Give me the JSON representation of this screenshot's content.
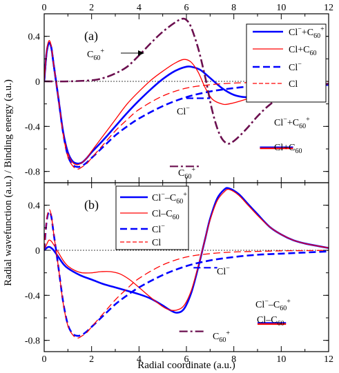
{
  "chart_data": [
    {
      "panel": "(a)",
      "type": "line",
      "xlabel": "Radial coordinate (a.u.)",
      "ylabel": "Radial wavefunction (a.u.) / Binding energy (a.u.)",
      "xlim": [
        0,
        12
      ],
      "ylim": [
        -0.9,
        0.6
      ],
      "xticks": [
        0,
        2,
        4,
        6,
        8,
        10,
        12
      ],
      "yticks": [
        -0.8,
        -0.4,
        0,
        0.4
      ],
      "ytick_labels": [
        "-0.8",
        "-0.4",
        "0",
        "0.4"
      ],
      "legend_position": "top-right",
      "series": [
        {
          "name": "Cl⁻+C60+",
          "color": "#0000ff",
          "dash": "solid",
          "width": 2.6,
          "x": [
            0,
            0.1,
            0.2,
            0.3,
            0.4,
            0.6,
            0.8,
            1.0,
            1.2,
            1.4,
            1.6,
            1.8,
            2.0,
            2.5,
            3.0,
            3.5,
            4.0,
            4.5,
            5.0,
            5.5,
            6.0,
            6.3,
            6.6,
            7.0,
            7.5,
            8.0,
            8.5,
            9.0,
            10.0,
            11.0,
            12.0
          ],
          "y": [
            0,
            0.25,
            0.34,
            0.3,
            0.15,
            -0.15,
            -0.45,
            -0.63,
            -0.71,
            -0.73,
            -0.72,
            -0.68,
            -0.63,
            -0.52,
            -0.4,
            -0.28,
            -0.17,
            -0.07,
            0.02,
            0.09,
            0.13,
            0.125,
            0.1,
            0.03,
            -0.06,
            -0.12,
            -0.14,
            -0.13,
            -0.09,
            -0.05,
            -0.03
          ]
        },
        {
          "name": "Cl+C60",
          "color": "#ff0000",
          "dash": "solid",
          "width": 1.3,
          "x": [
            0,
            0.1,
            0.2,
            0.3,
            0.4,
            0.6,
            0.8,
            1.0,
            1.2,
            1.4,
            1.6,
            1.8,
            2.0,
            2.5,
            3.0,
            3.5,
            4.0,
            4.5,
            5.0,
            5.5,
            5.9,
            6.2,
            6.5,
            6.8,
            7.1,
            7.5,
            7.8,
            8.5,
            9.0,
            10.0,
            11.0,
            12.0
          ],
          "y": [
            0,
            0.26,
            0.36,
            0.31,
            0.15,
            -0.15,
            -0.46,
            -0.64,
            -0.72,
            -0.74,
            -0.72,
            -0.68,
            -0.62,
            -0.48,
            -0.34,
            -0.2,
            -0.09,
            0.01,
            0.09,
            0.16,
            0.195,
            0.17,
            0.08,
            -0.06,
            -0.16,
            -0.2,
            -0.2,
            -0.16,
            -0.12,
            -0.07,
            -0.04,
            -0.02
          ]
        },
        {
          "name": "Cl⁻",
          "color": "#0000ff",
          "dash": "dashed",
          "width": 2.6,
          "x": [
            0,
            0.1,
            0.2,
            0.3,
            0.4,
            0.6,
            0.8,
            1.0,
            1.2,
            1.4,
            1.6,
            1.8,
            2.0,
            2.5,
            3.0,
            3.5,
            4.0,
            5.0,
            6.0,
            7.0,
            8.0,
            9.0,
            10.0,
            11.0,
            12.0
          ],
          "y": [
            0,
            0.25,
            0.34,
            0.3,
            0.15,
            -0.15,
            -0.46,
            -0.66,
            -0.74,
            -0.76,
            -0.75,
            -0.72,
            -0.68,
            -0.58,
            -0.48,
            -0.4,
            -0.33,
            -0.22,
            -0.14,
            -0.09,
            -0.06,
            -0.04,
            -0.03,
            -0.02,
            -0.01
          ]
        },
        {
          "name": "Cl",
          "color": "#ff0000",
          "dash": "dashed",
          "width": 1.3,
          "x": [
            0,
            0.1,
            0.2,
            0.3,
            0.4,
            0.6,
            0.8,
            1.0,
            1.2,
            1.4,
            1.6,
            1.8,
            2.0,
            2.5,
            3.0,
            3.5,
            4.0,
            5.0,
            6.0,
            7.0,
            8.0,
            9.0,
            10.0,
            11.0,
            12.0
          ],
          "y": [
            0,
            0.26,
            0.36,
            0.31,
            0.15,
            -0.15,
            -0.47,
            -0.67,
            -0.75,
            -0.78,
            -0.76,
            -0.73,
            -0.68,
            -0.56,
            -0.44,
            -0.34,
            -0.25,
            -0.13,
            -0.06,
            -0.03,
            -0.015,
            -0.01,
            -0.005,
            -0.003,
            -0.001
          ]
        },
        {
          "name": "C60+",
          "color": "#6b0f4f",
          "dash": "dashdot",
          "width": 2.6,
          "x": [
            0,
            1.0,
            2.0,
            2.5,
            3.0,
            3.5,
            4.0,
            4.5,
            5.0,
            5.5,
            5.8,
            6.0,
            6.2,
            6.5,
            6.8,
            7.1,
            7.4,
            7.7,
            8.0,
            8.5,
            9.0,
            9.5,
            10.0,
            11.0,
            12.0
          ],
          "y": [
            0,
            0.0,
            0.01,
            0.03,
            0.07,
            0.13,
            0.23,
            0.34,
            0.44,
            0.52,
            0.555,
            0.545,
            0.48,
            0.29,
            0.03,
            -0.27,
            -0.47,
            -0.55,
            -0.53,
            -0.43,
            -0.31,
            -0.21,
            -0.14,
            -0.06,
            -0.02
          ]
        }
      ],
      "energy_levels": [
        {
          "label": "Cl⁻",
          "y": -0.15,
          "x": [
            6.0,
            7.0
          ],
          "color": "#0000ff",
          "dash": "dashed"
        },
        {
          "label": "Cl⁻+C60+",
          "y": -0.585,
          "x": [
            9.1,
            10.5
          ],
          "color": "#0000ff",
          "dash": "solid"
        },
        {
          "label": "Cl+C60",
          "y": -0.595,
          "x": [
            9.1,
            10.5
          ],
          "color": "#ff0000",
          "dash": "solid"
        },
        {
          "label": "C60+",
          "y": -0.755,
          "x": [
            5.3,
            6.6
          ],
          "color": "#6b0f4f",
          "dash": "dashdot"
        }
      ],
      "annotations": [
        {
          "text": "C60+",
          "arrow_to": [
            4.2,
            0.31
          ]
        }
      ]
    },
    {
      "panel": "(b)",
      "type": "line",
      "xlabel": "Radial coordinate (a.u.)",
      "xlim": [
        0,
        12
      ],
      "ylim": [
        -0.9,
        0.6
      ],
      "xticks": [
        0,
        2,
        4,
        6,
        8,
        10,
        12
      ],
      "yticks": [
        -0.8,
        -0.4,
        0,
        0.4
      ],
      "ytick_labels": [
        "-0.8",
        "-0.4",
        "0",
        "0.4"
      ],
      "legend_position": "top-left",
      "series": [
        {
          "name": "Cl⁻–C60+",
          "color": "#0000ff",
          "dash": "solid",
          "width": 2.6,
          "x": [
            0,
            0.1,
            0.2,
            0.3,
            0.4,
            0.6,
            0.8,
            1.0,
            1.5,
            2.0,
            2.5,
            3.0,
            3.5,
            4.0,
            4.5,
            5.0,
            5.3,
            5.6,
            5.9,
            6.2,
            6.5,
            6.8,
            7.0,
            7.3,
            7.6,
            7.8,
            8.2,
            8.6,
            9.0,
            9.5,
            10.0,
            10.5,
            11.0,
            11.5,
            12.0
          ],
          "y": [
            0,
            0.02,
            0.03,
            0.02,
            0.0,
            -0.06,
            -0.12,
            -0.16,
            -0.22,
            -0.26,
            -0.3,
            -0.33,
            -0.36,
            -0.39,
            -0.43,
            -0.49,
            -0.53,
            -0.555,
            -0.52,
            -0.38,
            -0.15,
            0.11,
            0.28,
            0.46,
            0.54,
            0.55,
            0.5,
            0.41,
            0.32,
            0.21,
            0.14,
            0.09,
            0.06,
            0.04,
            0.02
          ]
        },
        {
          "name": "Cl–C60",
          "color": "#ff0000",
          "dash": "solid",
          "width": 1.3,
          "x": [
            0,
            0.1,
            0.2,
            0.3,
            0.4,
            0.6,
            0.8,
            1.0,
            1.3,
            1.6,
            2.0,
            2.4,
            2.8,
            3.2,
            3.6,
            4.0,
            4.5,
            5.0,
            5.3,
            5.6,
            5.9,
            6.2,
            6.5,
            6.8,
            7.0,
            7.3,
            7.6,
            7.8,
            8.2,
            8.6,
            9.0,
            9.5,
            10.0,
            10.5,
            11.0,
            11.5,
            12.0
          ],
          "y": [
            0,
            0.05,
            0.09,
            0.08,
            0.05,
            -0.02,
            -0.09,
            -0.14,
            -0.18,
            -0.2,
            -0.2,
            -0.19,
            -0.19,
            -0.21,
            -0.26,
            -0.33,
            -0.42,
            -0.5,
            -0.53,
            -0.53,
            -0.49,
            -0.36,
            -0.14,
            0.11,
            0.27,
            0.44,
            0.52,
            0.54,
            0.49,
            0.4,
            0.31,
            0.21,
            0.14,
            0.09,
            0.06,
            0.04,
            0.02
          ]
        },
        {
          "name": "Cl⁻",
          "color": "#0000ff",
          "dash": "dashed",
          "width": 2.6,
          "x": [
            0,
            0.1,
            0.2,
            0.3,
            0.4,
            0.6,
            0.8,
            1.0,
            1.2,
            1.4,
            1.6,
            1.8,
            2.0,
            2.5,
            3.0,
            3.5,
            4.0,
            5.0,
            6.0,
            7.0,
            8.0,
            9.0,
            10.0,
            11.0,
            12.0
          ],
          "y": [
            0,
            0.25,
            0.34,
            0.3,
            0.15,
            -0.15,
            -0.46,
            -0.66,
            -0.74,
            -0.76,
            -0.75,
            -0.72,
            -0.68,
            -0.58,
            -0.48,
            -0.4,
            -0.33,
            -0.22,
            -0.14,
            -0.09,
            -0.06,
            -0.04,
            -0.03,
            -0.02,
            -0.01
          ]
        },
        {
          "name": "Cl",
          "color": "#ff0000",
          "dash": "dashed",
          "width": 1.3,
          "x": [
            0,
            0.1,
            0.2,
            0.3,
            0.4,
            0.6,
            0.8,
            1.0,
            1.2,
            1.4,
            1.6,
            1.8,
            2.0,
            2.5,
            3.0,
            3.5,
            4.0,
            5.0,
            6.0,
            7.0,
            8.0,
            9.0,
            10.0,
            11.0,
            12.0
          ],
          "y": [
            0,
            0.26,
            0.36,
            0.31,
            0.15,
            -0.15,
            -0.47,
            -0.67,
            -0.75,
            -0.78,
            -0.76,
            -0.73,
            -0.68,
            -0.56,
            -0.44,
            -0.34,
            -0.25,
            -0.13,
            -0.06,
            -0.03,
            -0.015,
            -0.01,
            -0.005,
            -0.003,
            -0.001
          ]
        }
      ],
      "energy_levels": [
        {
          "label": "Cl⁻",
          "y": -0.155,
          "x": [
            6.3,
            7.3
          ],
          "color": "#0000ff",
          "dash": "dashed"
        },
        {
          "label": "Cl⁻–C60+",
          "y": -0.645,
          "x": [
            9.0,
            10.2
          ],
          "color": "#0000ff",
          "dash": "solid"
        },
        {
          "label": "Cl–C60",
          "y": -0.655,
          "x": [
            9.0,
            10.2
          ],
          "color": "#ff0000",
          "dash": "solid"
        },
        {
          "label": "C60+",
          "y": -0.72,
          "x": [
            5.7,
            6.8
          ],
          "color": "#6b0f4f",
          "dash": "dashdot"
        }
      ]
    }
  ]
}
